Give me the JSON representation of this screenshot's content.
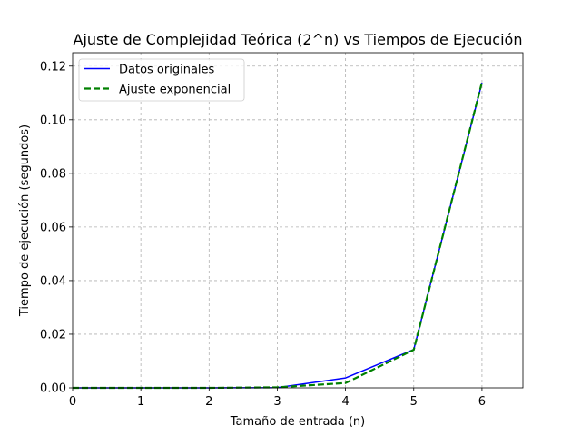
{
  "chart_data": {
    "type": "line",
    "title": "Ajuste de Complejidad Teórica (2^n) vs Tiempos de Ejecución",
    "xlabel": "Tamaño de entrada (n)",
    "ylabel": "Tiempo de ejecución (segundos)",
    "xlim": [
      0,
      6.6
    ],
    "ylim": [
      0,
      0.125
    ],
    "xticks": [
      0,
      1,
      2,
      3,
      4,
      5,
      6
    ],
    "xtick_labels": [
      "0",
      "1",
      "2",
      "3",
      "4",
      "5",
      "6"
    ],
    "yticks": [
      0,
      0.02,
      0.04,
      0.06,
      0.08,
      0.1,
      0.12
    ],
    "ytick_labels": [
      "0.00",
      "0.02",
      "0.04",
      "0.06",
      "0.08",
      "0.10",
      "0.12"
    ],
    "grid": true,
    "legend_position": "upper-left",
    "series": [
      {
        "name": "Datos originales",
        "color": "#0000ff",
        "style": "solid",
        "x": [
          0,
          1,
          2,
          3,
          4,
          5,
          6
        ],
        "y": [
          0.0,
          0.0,
          0.0,
          0.0001,
          0.0037,
          0.0143,
          0.1138
        ]
      },
      {
        "name": "Ajuste exponencial",
        "color": "#008000",
        "style": "dashed",
        "x": [
          0,
          1,
          2,
          3,
          4,
          5,
          6
        ],
        "y": [
          0.0,
          0.0,
          0.0,
          0.0002,
          0.0018,
          0.0142,
          0.114
        ]
      }
    ]
  }
}
